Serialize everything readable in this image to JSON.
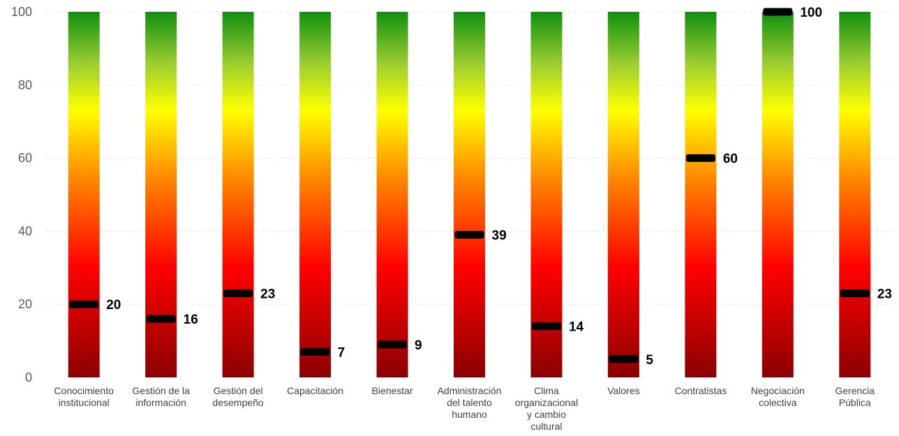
{
  "chart_data": {
    "type": "bar",
    "categories": [
      [
        "Conocimiento",
        "institucional"
      ],
      [
        "Gestión de la",
        "información"
      ],
      [
        "Gestión del",
        "desempeño"
      ],
      [
        "Capacitación"
      ],
      [
        "Bienestar"
      ],
      [
        "Administración",
        "del talento",
        "humano"
      ],
      [
        "Clima",
        "organizacional",
        "y cambio",
        "cultural"
      ],
      [
        "Valores"
      ],
      [
        "Contratistas"
      ],
      [
        "Negociación",
        "colectiva"
      ],
      [
        "Gerencia",
        "Pública"
      ]
    ],
    "bar_values": [
      100,
      100,
      100,
      100,
      100,
      100,
      100,
      100,
      100,
      100,
      100
    ],
    "marker_values": [
      20,
      16,
      23,
      7,
      9,
      39,
      14,
      5,
      60,
      100,
      23
    ],
    "marker_labels": [
      "20",
      "16",
      "23",
      "7",
      "9",
      "39",
      "14",
      "5",
      "60",
      "100",
      "23"
    ],
    "y_ticks": [
      "0",
      "20",
      "40",
      "60",
      "80",
      "100"
    ],
    "ylim": [
      0,
      100
    ],
    "grid": true,
    "gradient_colors": [
      "#8b0000",
      "#ff0000",
      "#ff8c00",
      "#ffff00",
      "#9acd32",
      "#109010"
    ],
    "marker_color": "#000000"
  }
}
